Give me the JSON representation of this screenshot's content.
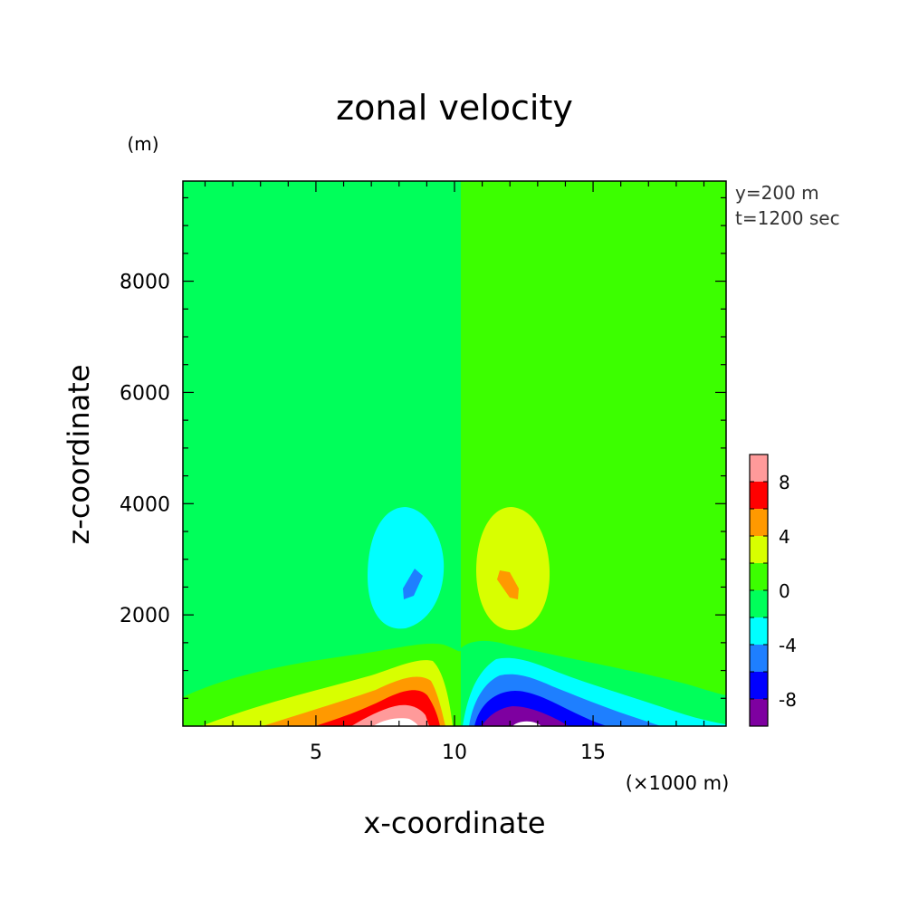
{
  "chart_data": {
    "type": "heatmap",
    "title": "zonal velocity",
    "xlabel": "x-coordinate",
    "ylabel": "z-coordinate",
    "x_unit": "(×1000 m)",
    "y_unit": "(m)",
    "xlim": [
      0.2,
      19.8
    ],
    "ylim": [
      0,
      9800
    ],
    "x_ticks": [
      5,
      10,
      15
    ],
    "y_ticks": [
      2000,
      4000,
      6000,
      8000
    ],
    "info": [
      "y=200 m",
      "t=1200 sec"
    ],
    "colorbar": {
      "levels": [
        -10,
        -8,
        -6,
        -4,
        -2,
        0,
        2,
        4,
        6,
        8,
        10
      ],
      "tick_labels": [
        "8",
        "4",
        "0",
        "-4",
        "-8"
      ],
      "tick_values": [
        8,
        4,
        0,
        -4,
        -8
      ],
      "colors": [
        "#7e00a0",
        "#0000ff",
        "#1e7fff",
        "#00ffff",
        "#00ff5a",
        "#3cff00",
        "#d8ff00",
        "#ff9900",
        "#ff0000",
        "#ff9a9a"
      ]
    },
    "background": {
      "left_color": "#00ff5a",
      "right_color": "#3cff00"
    },
    "features": [
      {
        "name": "upper-negative-cell",
        "center_x": 8.1,
        "center_z": 2900,
        "peak_value": -5,
        "color": "#00ffff"
      },
      {
        "name": "upper-negative-core",
        "center_x": 8.4,
        "center_z": 2650,
        "color": "#1e7fff"
      },
      {
        "name": "upper-positive-cell",
        "center_x": 11.9,
        "center_z": 2900,
        "peak_value": 5,
        "color": "#d8ff00"
      },
      {
        "name": "upper-positive-core",
        "center_x": 11.8,
        "center_z": 2650,
        "color": "#ff9900"
      },
      {
        "name": "surface-positive-jet",
        "center_x": 8.0,
        "center_z": 0,
        "peak_value": 10
      },
      {
        "name": "surface-negative-jet",
        "center_x": 12.2,
        "center_z": 0,
        "peak_value": -10
      }
    ]
  }
}
